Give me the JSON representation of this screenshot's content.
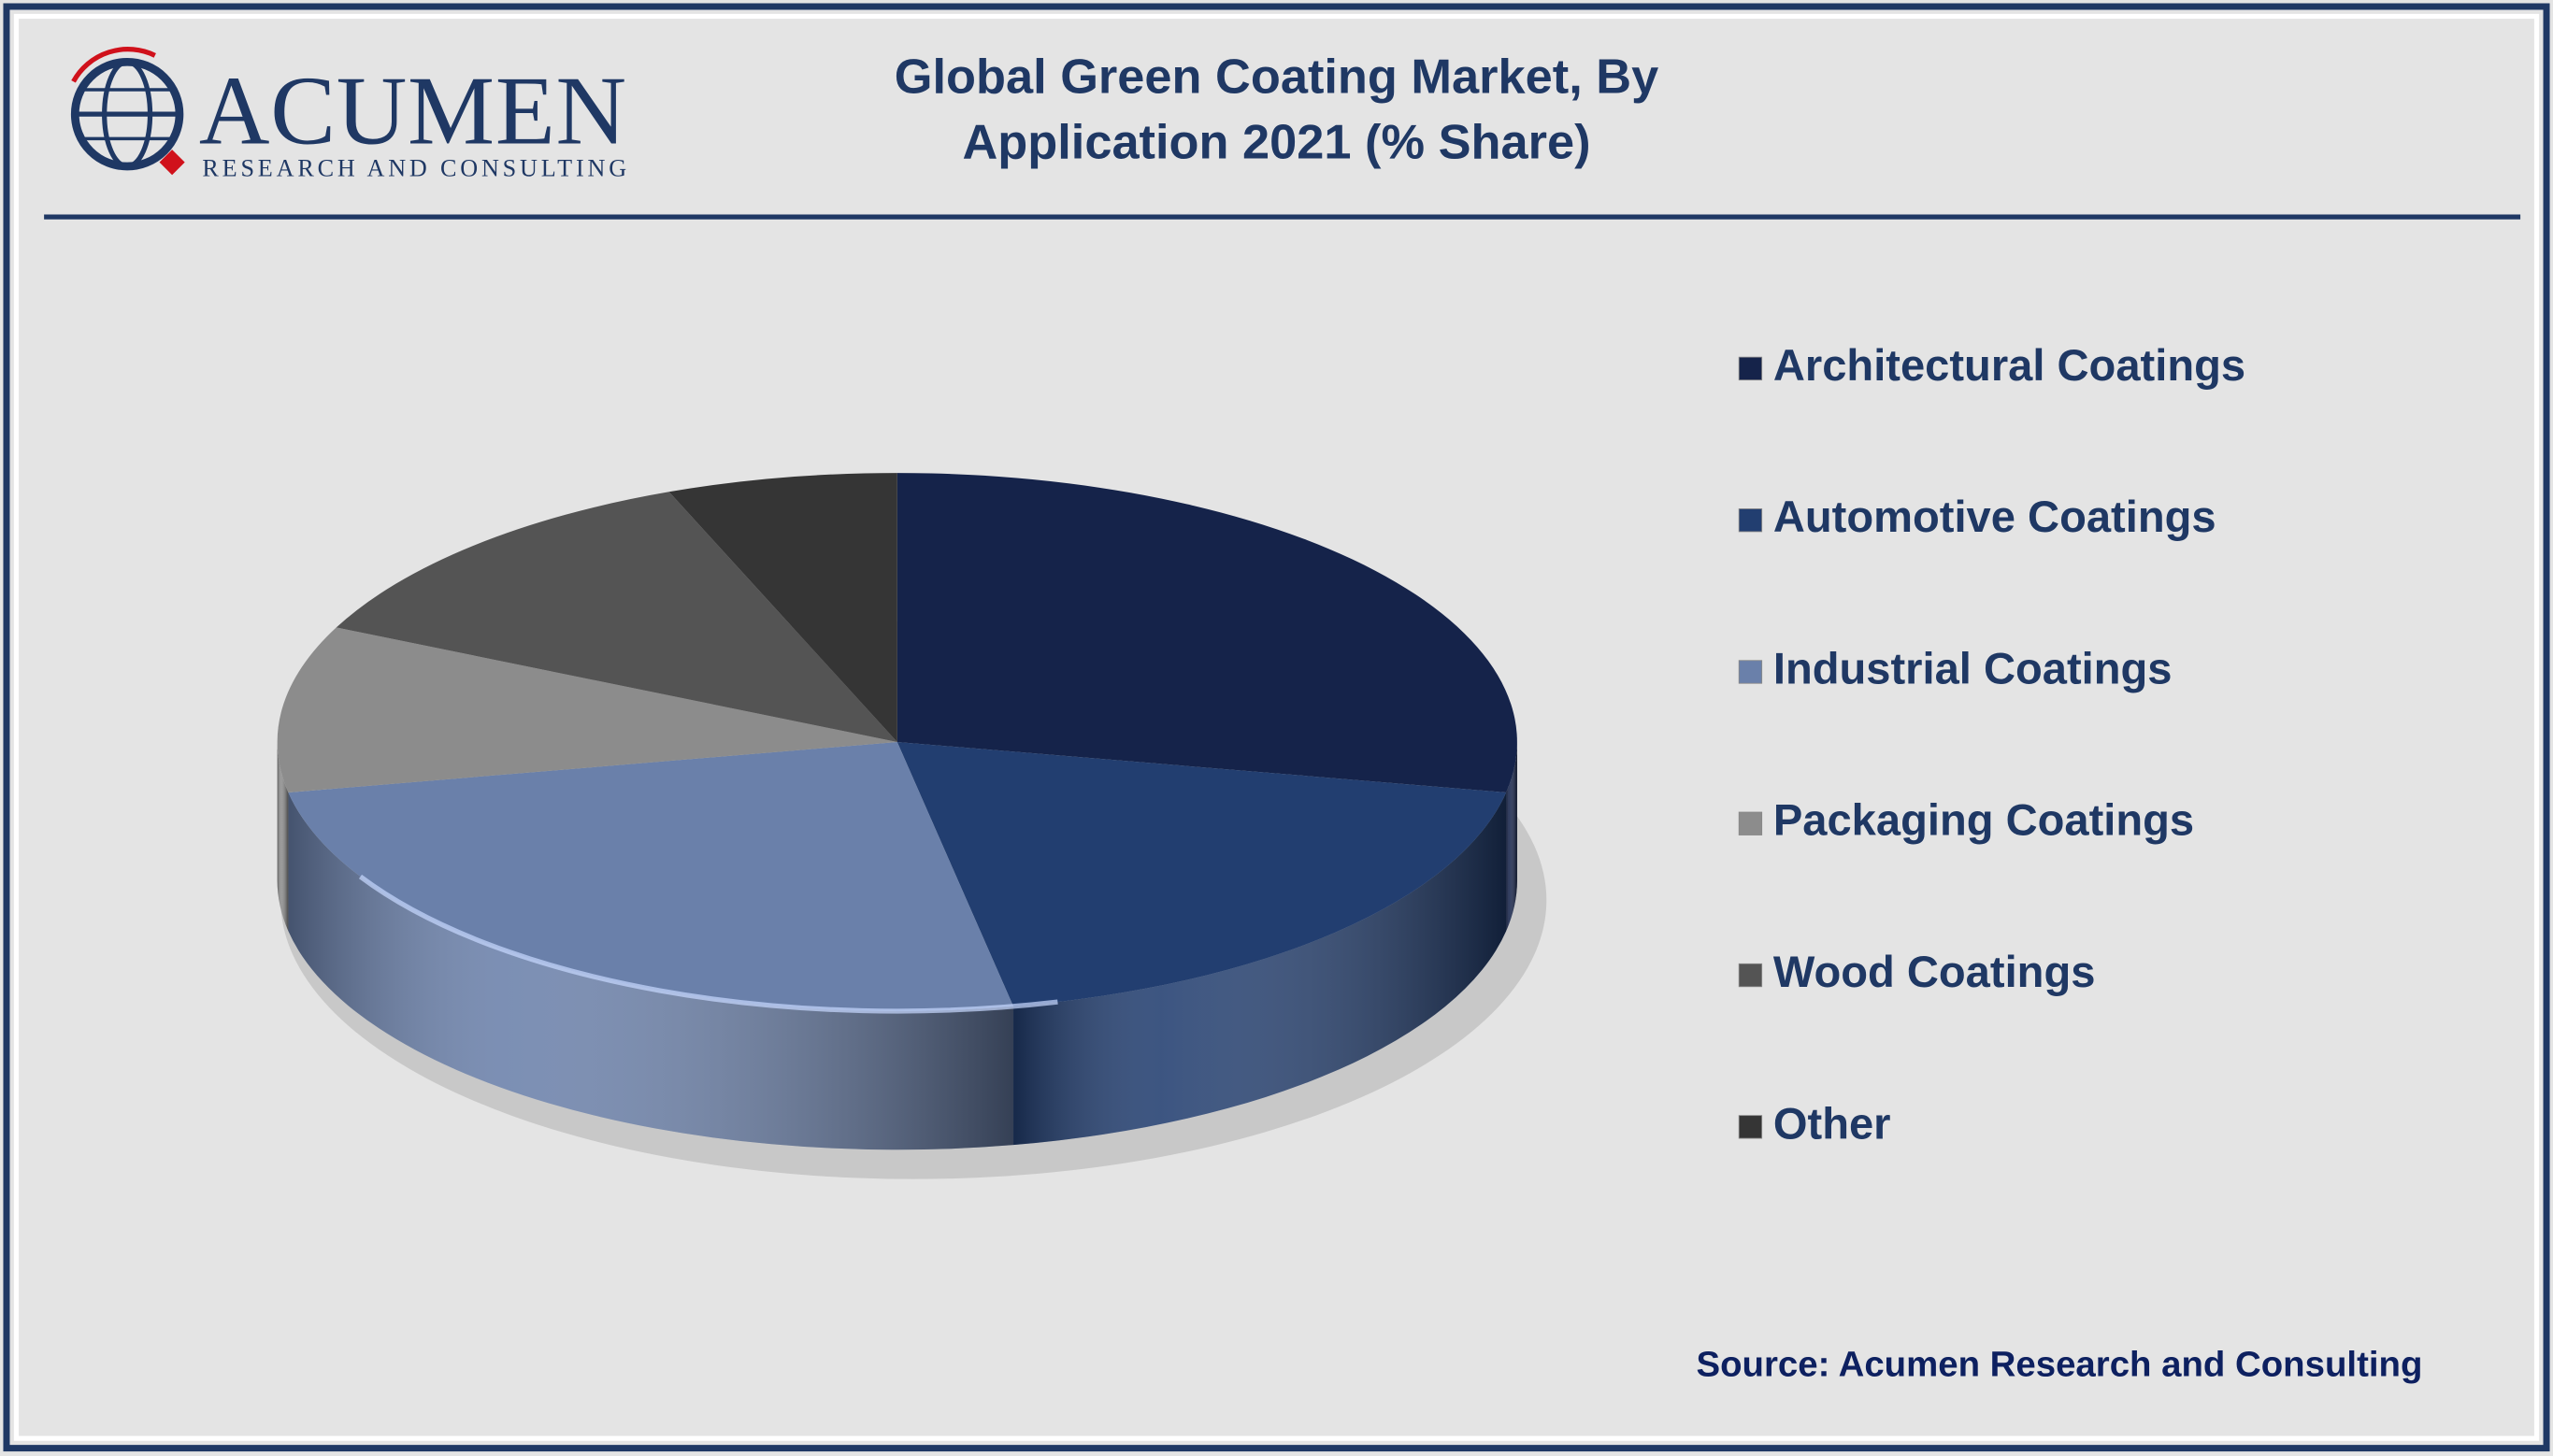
{
  "logo": {
    "name": "ACUMEN",
    "tagline": "RESEARCH AND CONSULTING"
  },
  "chart_data": {
    "type": "pie",
    "title": "Global Green Coating Market, By Application 2021 (% Share)",
    "categories": [
      "Architectural Coatings",
      "Automotive Coatings",
      "Industrial Coatings",
      "Packaging Coatings",
      "Wood Coatings",
      "Other"
    ],
    "values": [
      28,
      19,
      25,
      10,
      12,
      6
    ],
    "colors": [
      "#15234a",
      "#223e70",
      "#6a80aa",
      "#8c8c8c",
      "#545454",
      "#353535"
    ],
    "legend": "right"
  },
  "source": "Source: Acumen Research and Consulting"
}
